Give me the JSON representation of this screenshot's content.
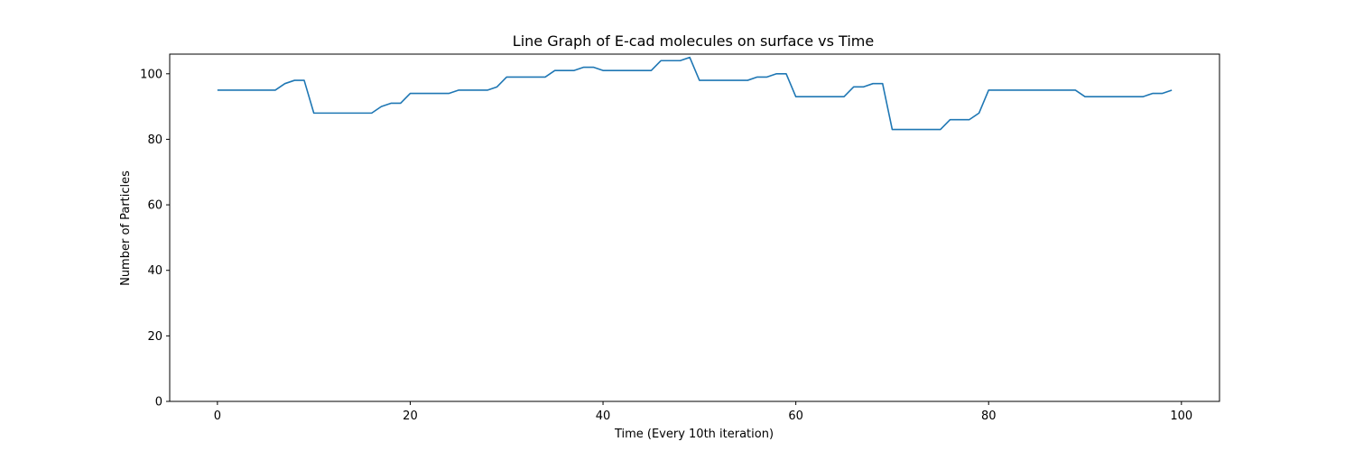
{
  "chart_data": {
    "type": "line",
    "title": "Line Graph of E-cad molecules on surface vs Time",
    "xlabel": "Time (Every 10th iteration)",
    "ylabel": "Number of Particles",
    "xlim": [
      -4.95,
      103.95
    ],
    "ylim": [
      0,
      106
    ],
    "xticks": [
      0,
      20,
      40,
      60,
      80,
      100
    ],
    "yticks": [
      0,
      20,
      40,
      60,
      80,
      100
    ],
    "grid": false,
    "series": [
      {
        "color": "#1f77b4",
        "x": [
          0,
          1,
          2,
          3,
          4,
          5,
          6,
          7,
          8,
          9,
          10,
          11,
          12,
          13,
          14,
          15,
          16,
          17,
          18,
          19,
          20,
          21,
          22,
          23,
          24,
          25,
          26,
          27,
          28,
          29,
          30,
          31,
          32,
          33,
          34,
          35,
          36,
          37,
          38,
          39,
          40,
          41,
          42,
          43,
          44,
          45,
          46,
          47,
          48,
          49,
          50,
          51,
          52,
          53,
          54,
          55,
          56,
          57,
          58,
          59,
          60,
          61,
          62,
          63,
          64,
          65,
          66,
          67,
          68,
          69,
          70,
          71,
          72,
          73,
          74,
          75,
          76,
          77,
          78,
          79,
          80,
          81,
          82,
          83,
          84,
          85,
          86,
          87,
          88,
          89,
          90,
          91,
          92,
          93,
          94,
          95,
          96,
          97,
          98,
          99
        ],
        "values": [
          95,
          95,
          95,
          95,
          95,
          95,
          95,
          97,
          98,
          98,
          88,
          88,
          88,
          88,
          88,
          88,
          88,
          90,
          91,
          91,
          94,
          94,
          94,
          94,
          94,
          95,
          95,
          95,
          95,
          96,
          99,
          99,
          99,
          99,
          99,
          101,
          101,
          101,
          102,
          102,
          101,
          101,
          101,
          101,
          101,
          101,
          104,
          104,
          104,
          105,
          98,
          98,
          98,
          98,
          98,
          98,
          99,
          99,
          100,
          100,
          93,
          93,
          93,
          93,
          93,
          93,
          96,
          96,
          97,
          97,
          83,
          83,
          83,
          83,
          83,
          83,
          86,
          86,
          86,
          88,
          95,
          95,
          95,
          95,
          95,
          95,
          95,
          95,
          95,
          95,
          93,
          93,
          93,
          93,
          93,
          93,
          93,
          94,
          94,
          95
        ]
      }
    ]
  }
}
